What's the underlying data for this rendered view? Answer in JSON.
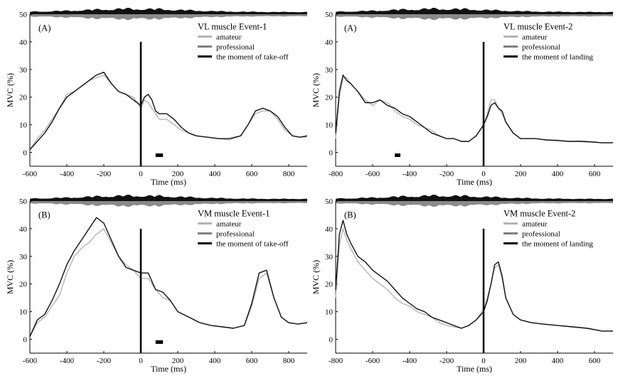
{
  "chart_data": [
    {
      "type": "line",
      "panel_letter": "(A)",
      "title": "VL muscle Event-1",
      "xlabel": "Time (ms)",
      "ylabel": "MVC (%)",
      "xlim": [
        -600,
        900
      ],
      "ylim": [
        -5,
        50
      ],
      "x_ticks": [
        "-600",
        "-400",
        "-200",
        "0",
        "200",
        "400",
        "600",
        "800"
      ],
      "y_ticks": [
        "0",
        "10",
        "20",
        "30",
        "40",
        "50"
      ],
      "event_line_x": 0,
      "significance_marker": [
        80,
        120
      ],
      "legend": [
        "amateur",
        "professional",
        "the moment of take-off"
      ],
      "colors": {
        "amateur": "#b4b4b4",
        "professional": "#7f7f7f",
        "event": "#000000"
      },
      "series": [
        {
          "name": "amateur",
          "x": [
            -600,
            -560,
            -520,
            -480,
            -440,
            -400,
            -360,
            -320,
            -280,
            -240,
            -200,
            -160,
            -120,
            -80,
            -40,
            0,
            20,
            40,
            60,
            80,
            100,
            140,
            180,
            220,
            260,
            300,
            360,
            420,
            480,
            540,
            580,
            620,
            660,
            700,
            740,
            780,
            820,
            860,
            900
          ],
          "y": [
            1,
            5,
            8,
            12,
            16,
            21,
            22,
            24,
            26,
            27,
            28,
            25,
            22,
            21,
            20,
            16,
            19,
            18,
            16,
            14,
            12,
            12,
            10,
            8,
            7,
            6,
            5.5,
            5,
            4.5,
            6,
            10,
            14,
            15,
            15,
            12,
            8,
            6,
            5.5,
            5.5
          ]
        },
        {
          "name": "professional",
          "x": [
            -600,
            -560,
            -520,
            -480,
            -440,
            -400,
            -360,
            -320,
            -280,
            -240,
            -200,
            -160,
            -120,
            -80,
            -40,
            0,
            20,
            40,
            60,
            80,
            100,
            140,
            180,
            220,
            260,
            300,
            360,
            420,
            480,
            540,
            580,
            620,
            660,
            700,
            740,
            780,
            820,
            860,
            900
          ],
          "y": [
            1,
            4,
            7,
            11,
            16,
            20,
            22,
            24,
            26,
            28,
            29,
            25,
            22,
            21,
            19,
            17,
            20,
            21,
            19,
            15,
            14,
            14,
            12,
            9,
            7,
            6,
            5.5,
            5,
            5,
            6,
            10,
            15,
            16,
            15,
            13,
            9,
            6,
            5.5,
            6
          ]
        }
      ]
    },
    {
      "type": "line",
      "panel_letter": "(A)",
      "title": "VL muscle Event-2",
      "xlabel": "Time (ms)",
      "ylabel": "MVC (%)",
      "xlim": [
        -800,
        700
      ],
      "ylim": [
        -5,
        50
      ],
      "x_ticks": [
        "-800",
        "-600",
        "-400",
        "-200",
        "0",
        "200",
        "400",
        "600"
      ],
      "y_ticks": [
        "0",
        "10",
        "20",
        "30",
        "40",
        "50"
      ],
      "event_line_x": 0,
      "significance_marker": [
        -480,
        -450
      ],
      "legend": [
        "amateur",
        "professional",
        "the moment of landing"
      ],
      "colors": {
        "amateur": "#b4b4b4",
        "professional": "#7f7f7f",
        "event": "#000000"
      },
      "series": [
        {
          "name": "amateur",
          "x": [
            -800,
            -780,
            -760,
            -740,
            -720,
            -680,
            -640,
            -600,
            -560,
            -520,
            -480,
            -440,
            -400,
            -360,
            -320,
            -280,
            -240,
            -200,
            -160,
            -120,
            -80,
            -40,
            0,
            20,
            40,
            60,
            80,
            100,
            120,
            160,
            200,
            240,
            280,
            340,
            400,
            460,
            520,
            580,
            640,
            700
          ],
          "y": [
            5,
            20,
            27,
            27,
            25,
            22,
            19,
            17,
            19,
            18,
            15,
            13,
            12,
            10,
            9,
            8,
            6,
            5,
            5,
            4,
            4,
            6,
            10,
            14,
            19,
            19,
            16,
            14,
            11,
            7,
            5,
            5,
            5,
            4.5,
            4.5,
            4,
            4.2,
            4,
            3.5,
            3.5
          ]
        },
        {
          "name": "professional",
          "x": [
            -800,
            -780,
            -760,
            -740,
            -720,
            -680,
            -640,
            -600,
            -560,
            -520,
            -480,
            -440,
            -400,
            -360,
            -320,
            -280,
            -240,
            -200,
            -160,
            -120,
            -80,
            -40,
            0,
            20,
            40,
            60,
            80,
            100,
            120,
            160,
            200,
            240,
            280,
            340,
            400,
            460,
            520,
            580,
            640,
            700
          ],
          "y": [
            7,
            22,
            28,
            26,
            25,
            22,
            18,
            18,
            19,
            17,
            16,
            14,
            13,
            11,
            9,
            7,
            6,
            5,
            5,
            4,
            4,
            6,
            10,
            13,
            17,
            18,
            16,
            15,
            11,
            7,
            5,
            5,
            5,
            4.5,
            4.3,
            4,
            4,
            3.8,
            3.5,
            3.5
          ]
        }
      ]
    },
    {
      "type": "line",
      "panel_letter": "(B)",
      "title": "VM muscle Event-1",
      "xlabel": "Time (ms)",
      "ylabel": "MVC (%)",
      "xlim": [
        -600,
        900
      ],
      "ylim": [
        -5,
        50
      ],
      "x_ticks": [
        "-600",
        "-400",
        "-200",
        "0",
        "200",
        "400",
        "600",
        "800"
      ],
      "y_ticks": [
        "0",
        "10",
        "20",
        "30",
        "40",
        "50"
      ],
      "event_line_x": 0,
      "significance_marker": [
        80,
        120
      ],
      "legend": [
        "amateur",
        "professional",
        "the moment of take-off"
      ],
      "colors": {
        "amateur": "#b4b4b4",
        "professional": "#7f7f7f",
        "event": "#000000"
      },
      "series": [
        {
          "name": "amateur",
          "x": [
            -600,
            -560,
            -520,
            -480,
            -440,
            -400,
            -360,
            -320,
            -280,
            -240,
            -200,
            -160,
            -120,
            -80,
            -40,
            0,
            40,
            80,
            120,
            160,
            200,
            260,
            320,
            380,
            440,
            500,
            560,
            600,
            640,
            680,
            720,
            760,
            800,
            850,
            900
          ],
          "y": [
            1,
            6,
            8,
            12,
            16,
            24,
            30,
            33,
            35,
            38,
            40,
            35,
            30,
            27,
            25,
            22,
            22,
            18,
            15,
            14,
            10,
            8,
            6,
            5,
            4.5,
            4,
            5,
            12,
            22,
            24,
            15,
            8,
            6,
            5.5,
            6
          ]
        },
        {
          "name": "professional",
          "x": [
            -600,
            -560,
            -520,
            -480,
            -440,
            -400,
            -360,
            -320,
            -280,
            -240,
            -200,
            -160,
            -120,
            -80,
            -40,
            0,
            40,
            80,
            120,
            160,
            200,
            260,
            320,
            380,
            440,
            500,
            560,
            600,
            640,
            680,
            720,
            760,
            800,
            850,
            900
          ],
          "y": [
            1,
            7,
            9,
            14,
            20,
            27,
            32,
            36,
            40,
            44,
            42,
            36,
            30,
            26,
            25,
            24,
            24,
            18,
            17,
            14,
            10,
            8,
            6,
            5,
            4.5,
            4,
            5,
            13,
            24,
            25,
            15,
            8,
            6,
            5.5,
            6
          ]
        }
      ]
    },
    {
      "type": "line",
      "panel_letter": "(B)",
      "title": "VM muscle Event-2",
      "xlabel": "Time (ms)",
      "ylabel": "MVC (%)",
      "xlim": [
        -800,
        700
      ],
      "ylim": [
        -5,
        50
      ],
      "x_ticks": [
        "-800",
        "-600",
        "-400",
        "-200",
        "0",
        "200",
        "400",
        "600"
      ],
      "y_ticks": [
        "0",
        "10",
        "20",
        "30",
        "40",
        "50"
      ],
      "event_line_x": 0,
      "legend": [
        "amateur",
        "professional",
        "the moment of landing"
      ],
      "colors": {
        "amateur": "#b4b4b4",
        "professional": "#7f7f7f",
        "event": "#000000"
      },
      "series": [
        {
          "name": "amateur",
          "x": [
            -800,
            -780,
            -760,
            -740,
            -720,
            -680,
            -640,
            -600,
            -560,
            -520,
            -480,
            -440,
            -400,
            -360,
            -320,
            -280,
            -240,
            -200,
            -160,
            -120,
            -80,
            -40,
            0,
            20,
            40,
            60,
            80,
            100,
            120,
            160,
            200,
            260,
            320,
            400,
            480,
            560,
            640,
            700
          ],
          "y": [
            15,
            34,
            40,
            36,
            33,
            28,
            25,
            22,
            20,
            18,
            15,
            13,
            12,
            10,
            9,
            8,
            6,
            5,
            4.5,
            4,
            5,
            7,
            11,
            15,
            20,
            26,
            27,
            22,
            15,
            9,
            7,
            6,
            5.5,
            5,
            4.5,
            4,
            3,
            3
          ]
        },
        {
          "name": "professional",
          "x": [
            -800,
            -780,
            -760,
            -740,
            -720,
            -680,
            -640,
            -600,
            -560,
            -520,
            -480,
            -440,
            -400,
            -360,
            -320,
            -280,
            -240,
            -200,
            -160,
            -120,
            -80,
            -40,
            0,
            20,
            40,
            60,
            80,
            100,
            120,
            160,
            200,
            260,
            320,
            400,
            480,
            560,
            640,
            700
          ],
          "y": [
            18,
            38,
            43,
            38,
            35,
            30,
            28,
            25,
            23,
            21,
            18,
            15,
            13,
            11,
            10,
            8,
            7,
            6,
            5,
            4,
            5,
            7,
            10,
            14,
            20,
            27,
            28,
            23,
            15,
            9,
            7,
            6,
            5.5,
            5,
            4.5,
            4,
            3,
            3
          ]
        }
      ]
    }
  ]
}
